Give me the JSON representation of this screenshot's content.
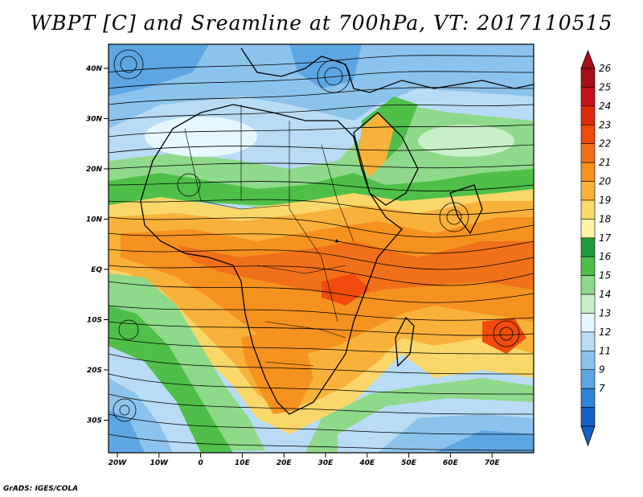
{
  "title": "WBPT [C] and Sreamline at 700hPa, VT: 2017110515",
  "credit": "GrADS: IGES/COLA",
  "lat_labels": [
    "40N",
    "30N",
    "20N",
    "10N",
    "EQ",
    "10S",
    "20S",
    "30S"
  ],
  "lon_labels": [
    "20W",
    "10W",
    "0",
    "10E",
    "20E",
    "30E",
    "40E",
    "50E",
    "60E",
    "70E"
  ],
  "colorbar": {
    "levels": [
      "26",
      "25",
      "24",
      "23",
      "22",
      "21",
      "20",
      "19",
      "18",
      "17",
      "16",
      "15",
      "14",
      "13",
      "12",
      "11",
      "9",
      "7"
    ],
    "colors": [
      "#a50f15",
      "#c8121a",
      "#e02a10",
      "#f04a0c",
      "#f2701a",
      "#f5921e",
      "#f8b23a",
      "#fbd76a",
      "#fef3a8",
      "#1f9a38",
      "#4fbf4a",
      "#8fd98a",
      "#c8f0c8",
      "#e6f8ff",
      "#b8dcf5",
      "#8cc3ec",
      "#5ea6e2",
      "#2f84d8",
      "#1760c8"
    ],
    "top_arrow": "#a50f15",
    "bottom_arrow": "#1760c8"
  }
}
